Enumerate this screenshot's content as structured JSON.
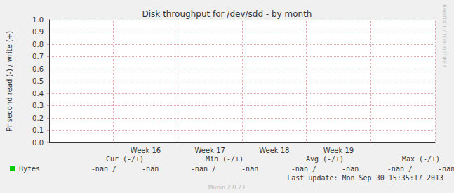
{
  "chart_data": {
    "type": "line",
    "title": "Disk throughput for /dev/sdd - by month",
    "y_label": "Pr second read (-) / write (+)",
    "categories": [
      null,
      "Week 16",
      "Week 17",
      "Week 18",
      "Week 19",
      null
    ],
    "series": [
      {
        "name": "Bytes",
        "color": "#00cc00",
        "values": [
          null,
          null,
          null,
          null,
          null,
          null
        ]
      }
    ],
    "ylim": [
      0,
      1
    ],
    "yticks": [
      {
        "value": 0,
        "label": "0.0"
      },
      0.1,
      0.2,
      0.3,
      0.4,
      0.5,
      0.6,
      0.7,
      0.8,
      0.9,
      {
        "value": 1,
        "label": "1.0"
      }
    ],
    "grid": true,
    "legend_table": {
      "headers": [
        "Cur (-/+)",
        "Min (-/+)",
        "Avg (-/+)",
        "Max (-/+)"
      ],
      "rows": [
        {
          "name": "Bytes",
          "cells": [
            "-nan /      -nan",
            "-nan /      -nan",
            "-nan /      -nan",
            "-nan /      -nan"
          ]
        }
      ]
    },
    "annotations": [
      "Last update: Mon Sep 30 15:35:17 2013",
      "Munin 2.0.73",
      "RRDTOOL / TOBI OETIKER"
    ]
  }
}
